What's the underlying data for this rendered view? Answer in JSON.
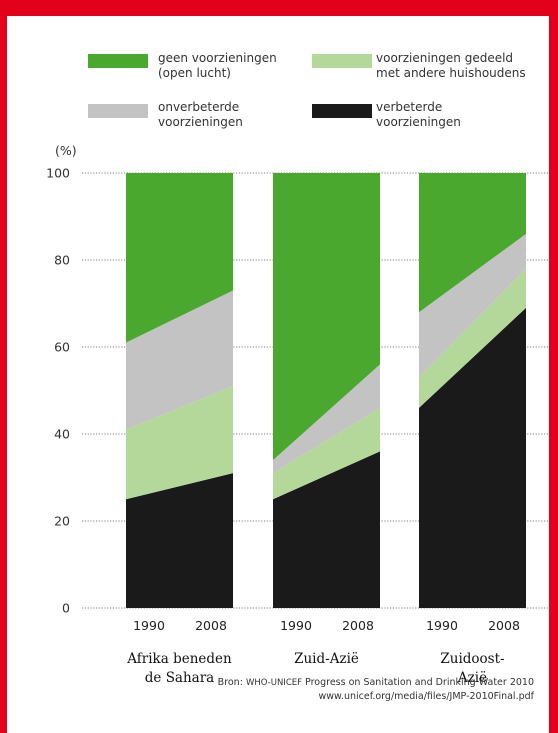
{
  "colors": {
    "frame": "#e2001a",
    "open_air": "#4aa82e",
    "shared": "#b4d899",
    "unimproved": "#c3c3c3",
    "improved": "#1a1a1a"
  },
  "chart_data": {
    "type": "area",
    "ylabel": "(%)",
    "ylim": [
      0,
      100
    ],
    "yticks": [
      0,
      20,
      40,
      60,
      80,
      100
    ],
    "grid": true,
    "legend_position": "top",
    "legend": [
      {
        "key": "open_air",
        "label": [
          "geen voorzieningen",
          "(open lucht)"
        ]
      },
      {
        "key": "shared",
        "label": [
          "voorzieningen gedeeld",
          "met andere huishoudens"
        ]
      },
      {
        "key": "unimproved",
        "label": [
          "onverbeterde",
          "voorzieningen"
        ]
      },
      {
        "key": "improved",
        "label": [
          "verbeterde",
          "voorzieningen"
        ]
      }
    ],
    "panels": [
      {
        "region": [
          "Afrika beneden",
          "de Sahara"
        ],
        "x": [
          "1990",
          "2008"
        ],
        "series": {
          "improved": [
            25,
            31
          ],
          "shared": [
            16,
            20
          ],
          "unimproved": [
            20,
            22
          ],
          "open_air": [
            39,
            27
          ]
        }
      },
      {
        "region": [
          "Zuid-Azië"
        ],
        "x": [
          "1990",
          "2008"
        ],
        "series": {
          "improved": [
            25,
            36
          ],
          "shared": [
            6,
            10
          ],
          "unimproved": [
            3,
            10
          ],
          "open_air": [
            66,
            44
          ]
        }
      },
      {
        "region": [
          "Zuidoost-",
          "Azië"
        ],
        "x": [
          "1990",
          "2008"
        ],
        "series": {
          "improved": [
            46,
            69
          ],
          "shared": [
            7,
            9
          ],
          "unimproved": [
            15,
            8
          ],
          "open_air": [
            32,
            14
          ]
        }
      }
    ]
  },
  "source": {
    "prefix": "Bron: ",
    "org": "WHO-UNICEF",
    "title": " Progress on Sanitation and Drinking Water 2010",
    "url": "www.unicef.org/media/files/JMP-2010Final.pdf"
  }
}
